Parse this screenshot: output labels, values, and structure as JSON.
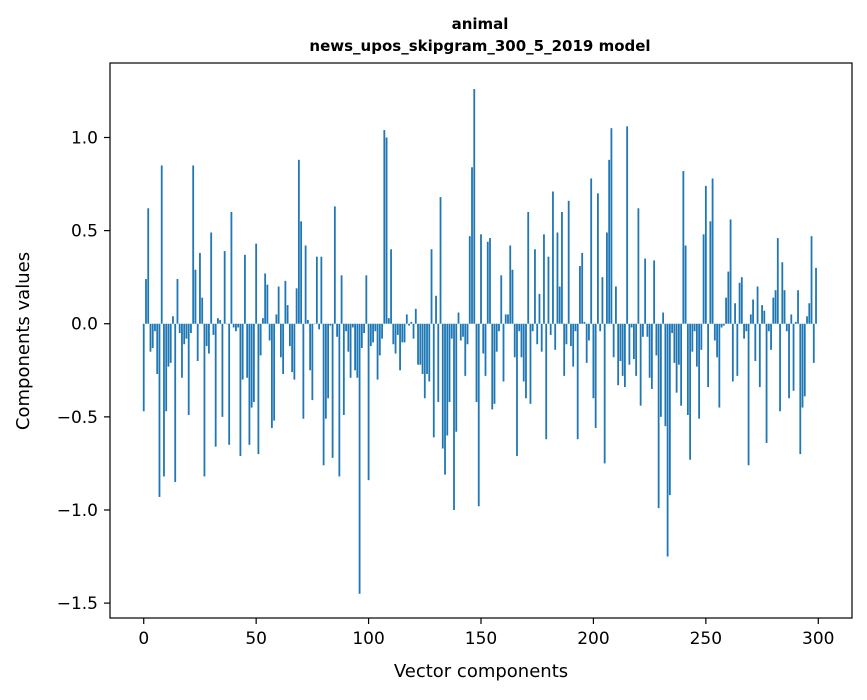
{
  "chart_data": {
    "type": "bar",
    "title_line1": "animal",
    "title_line2": "news_upos_skipgram_300_5_2019 model",
    "xlabel": "Vector components",
    "ylabel": "Components values",
    "xlim": [
      -15,
      315
    ],
    "ylim": [
      -1.58,
      1.4
    ],
    "xticks": [
      0,
      50,
      100,
      150,
      200,
      250,
      300
    ],
    "xtick_labels": [
      "0",
      "50",
      "100",
      "150",
      "200",
      "250",
      "300"
    ],
    "yticks": [
      -1.5,
      -1.0,
      -0.5,
      0.0,
      0.5,
      1.0
    ],
    "ytick_labels": [
      "−1.5",
      "−1.0",
      "−0.5",
      "0.0",
      "0.5",
      "1.0"
    ],
    "bar_color": "#1f77b4",
    "values": [
      -0.47,
      0.24,
      0.62,
      -0.15,
      -0.13,
      -0.04,
      -0.27,
      -0.93,
      0.85,
      -0.82,
      -0.47,
      -0.23,
      -0.21,
      0.04,
      -0.85,
      0.24,
      -0.05,
      -0.29,
      -0.11,
      -0.08,
      -0.49,
      -0.05,
      0.85,
      0.29,
      -0.2,
      0.38,
      0.14,
      -0.82,
      -0.12,
      -0.16,
      0.49,
      -0.06,
      -0.66,
      0.03,
      0.02,
      -0.5,
      0.39,
      0.0,
      -0.65,
      0.6,
      -0.02,
      -0.04,
      -0.02,
      -0.71,
      -0.3,
      0.37,
      -0.29,
      -0.65,
      -0.45,
      -0.42,
      0.43,
      -0.7,
      -0.17,
      0.03,
      0.27,
      0.21,
      -0.09,
      -0.56,
      -0.52,
      0.05,
      0.2,
      -0.18,
      -0.27,
      0.23,
      0.1,
      -0.12,
      -0.26,
      -0.3,
      0.19,
      0.88,
      0.55,
      -0.51,
      0.42,
      0.02,
      -0.25,
      -0.41,
      0.0,
      0.36,
      -0.03,
      0.36,
      -0.76,
      -0.51,
      -0.4,
      -0.01,
      -0.72,
      0.63,
      -0.07,
      -0.82,
      0.26,
      -0.49,
      -0.04,
      -0.15,
      -0.29,
      -0.02,
      -0.25,
      -0.29,
      -1.45,
      -0.13,
      -0.05,
      0.26,
      -0.84,
      -0.12,
      -0.1,
      -0.04,
      -0.3,
      -0.17,
      -0.08,
      1.04,
      1.0,
      0.03,
      0.4,
      -0.11,
      -0.16,
      -0.06,
      -0.25,
      -0.1,
      -0.1,
      0.05,
      -0.01,
      0.01,
      -0.08,
      0.08,
      -0.22,
      -0.22,
      -0.27,
      -0.4,
      -0.27,
      -0.31,
      0.4,
      -0.61,
      0.15,
      -0.42,
      0.68,
      -0.67,
      -0.81,
      -0.6,
      -0.42,
      -0.08,
      -1.0,
      -0.58,
      0.06,
      -0.09,
      -0.07,
      -0.28,
      -0.11,
      0.47,
      0.84,
      1.26,
      -0.42,
      -0.98,
      0.48,
      -0.16,
      -0.28,
      0.44,
      0.46,
      -0.46,
      -0.43,
      -0.15,
      -0.04,
      0.26,
      -0.31,
      0.05,
      0.05,
      0.42,
      0.29,
      -0.18,
      -0.71,
      -0.04,
      -0.18,
      -0.31,
      -0.4,
      0.6,
      -0.43,
      -0.04,
      0.4,
      -0.11,
      0.16,
      -0.15,
      0.48,
      -0.62,
      0.36,
      -0.06,
      0.71,
      -0.14,
      0.49,
      0.2,
      0.6,
      -0.28,
      -0.11,
      0.66,
      -0.12,
      -0.23,
      -0.04,
      -0.62,
      0.31,
      0.38,
      0.01,
      -0.21,
      -0.09,
      0.78,
      -0.4,
      -0.56,
      0.7,
      -0.04,
      0.25,
      -0.75,
      0.49,
      0.88,
      1.05,
      -0.18,
      0.2,
      -0.33,
      -0.2,
      -0.28,
      -0.34,
      1.06,
      -0.22,
      -0.02,
      -0.19,
      -0.28,
      0.62,
      -0.44,
      -0.07,
      0.35,
      -0.07,
      -0.29,
      -0.35,
      0.34,
      -0.17,
      -0.99,
      -0.5,
      0.06,
      -0.55,
      -1.25,
      -0.92,
      -0.05,
      -0.21,
      -0.37,
      -0.22,
      -0.44,
      0.82,
      0.42,
      -0.49,
      -0.73,
      -0.15,
      -0.04,
      -0.23,
      -0.51,
      -0.14,
      0.48,
      0.74,
      -0.34,
      0.55,
      0.78,
      -0.09,
      -0.18,
      -0.45,
      -0.02,
      -0.01,
      0.14,
      0.28,
      0.56,
      -0.31,
      0.11,
      -0.28,
      0.22,
      0.25,
      -0.08,
      -0.04,
      -0.76,
      0.05,
      0.13,
      -0.2,
      0.2,
      -0.34,
      0.1,
      0.07,
      -0.64,
      -0.04,
      -0.14,
      0.14,
      0.18,
      0.46,
      -0.47,
      0.33,
      0.18,
      -0.04,
      -0.4,
      0.05,
      -0.36,
      0.01,
      0.18,
      -0.7,
      -0.45,
      -0.39,
      0.04,
      0.11,
      0.47,
      -0.21,
      0.3
    ]
  }
}
